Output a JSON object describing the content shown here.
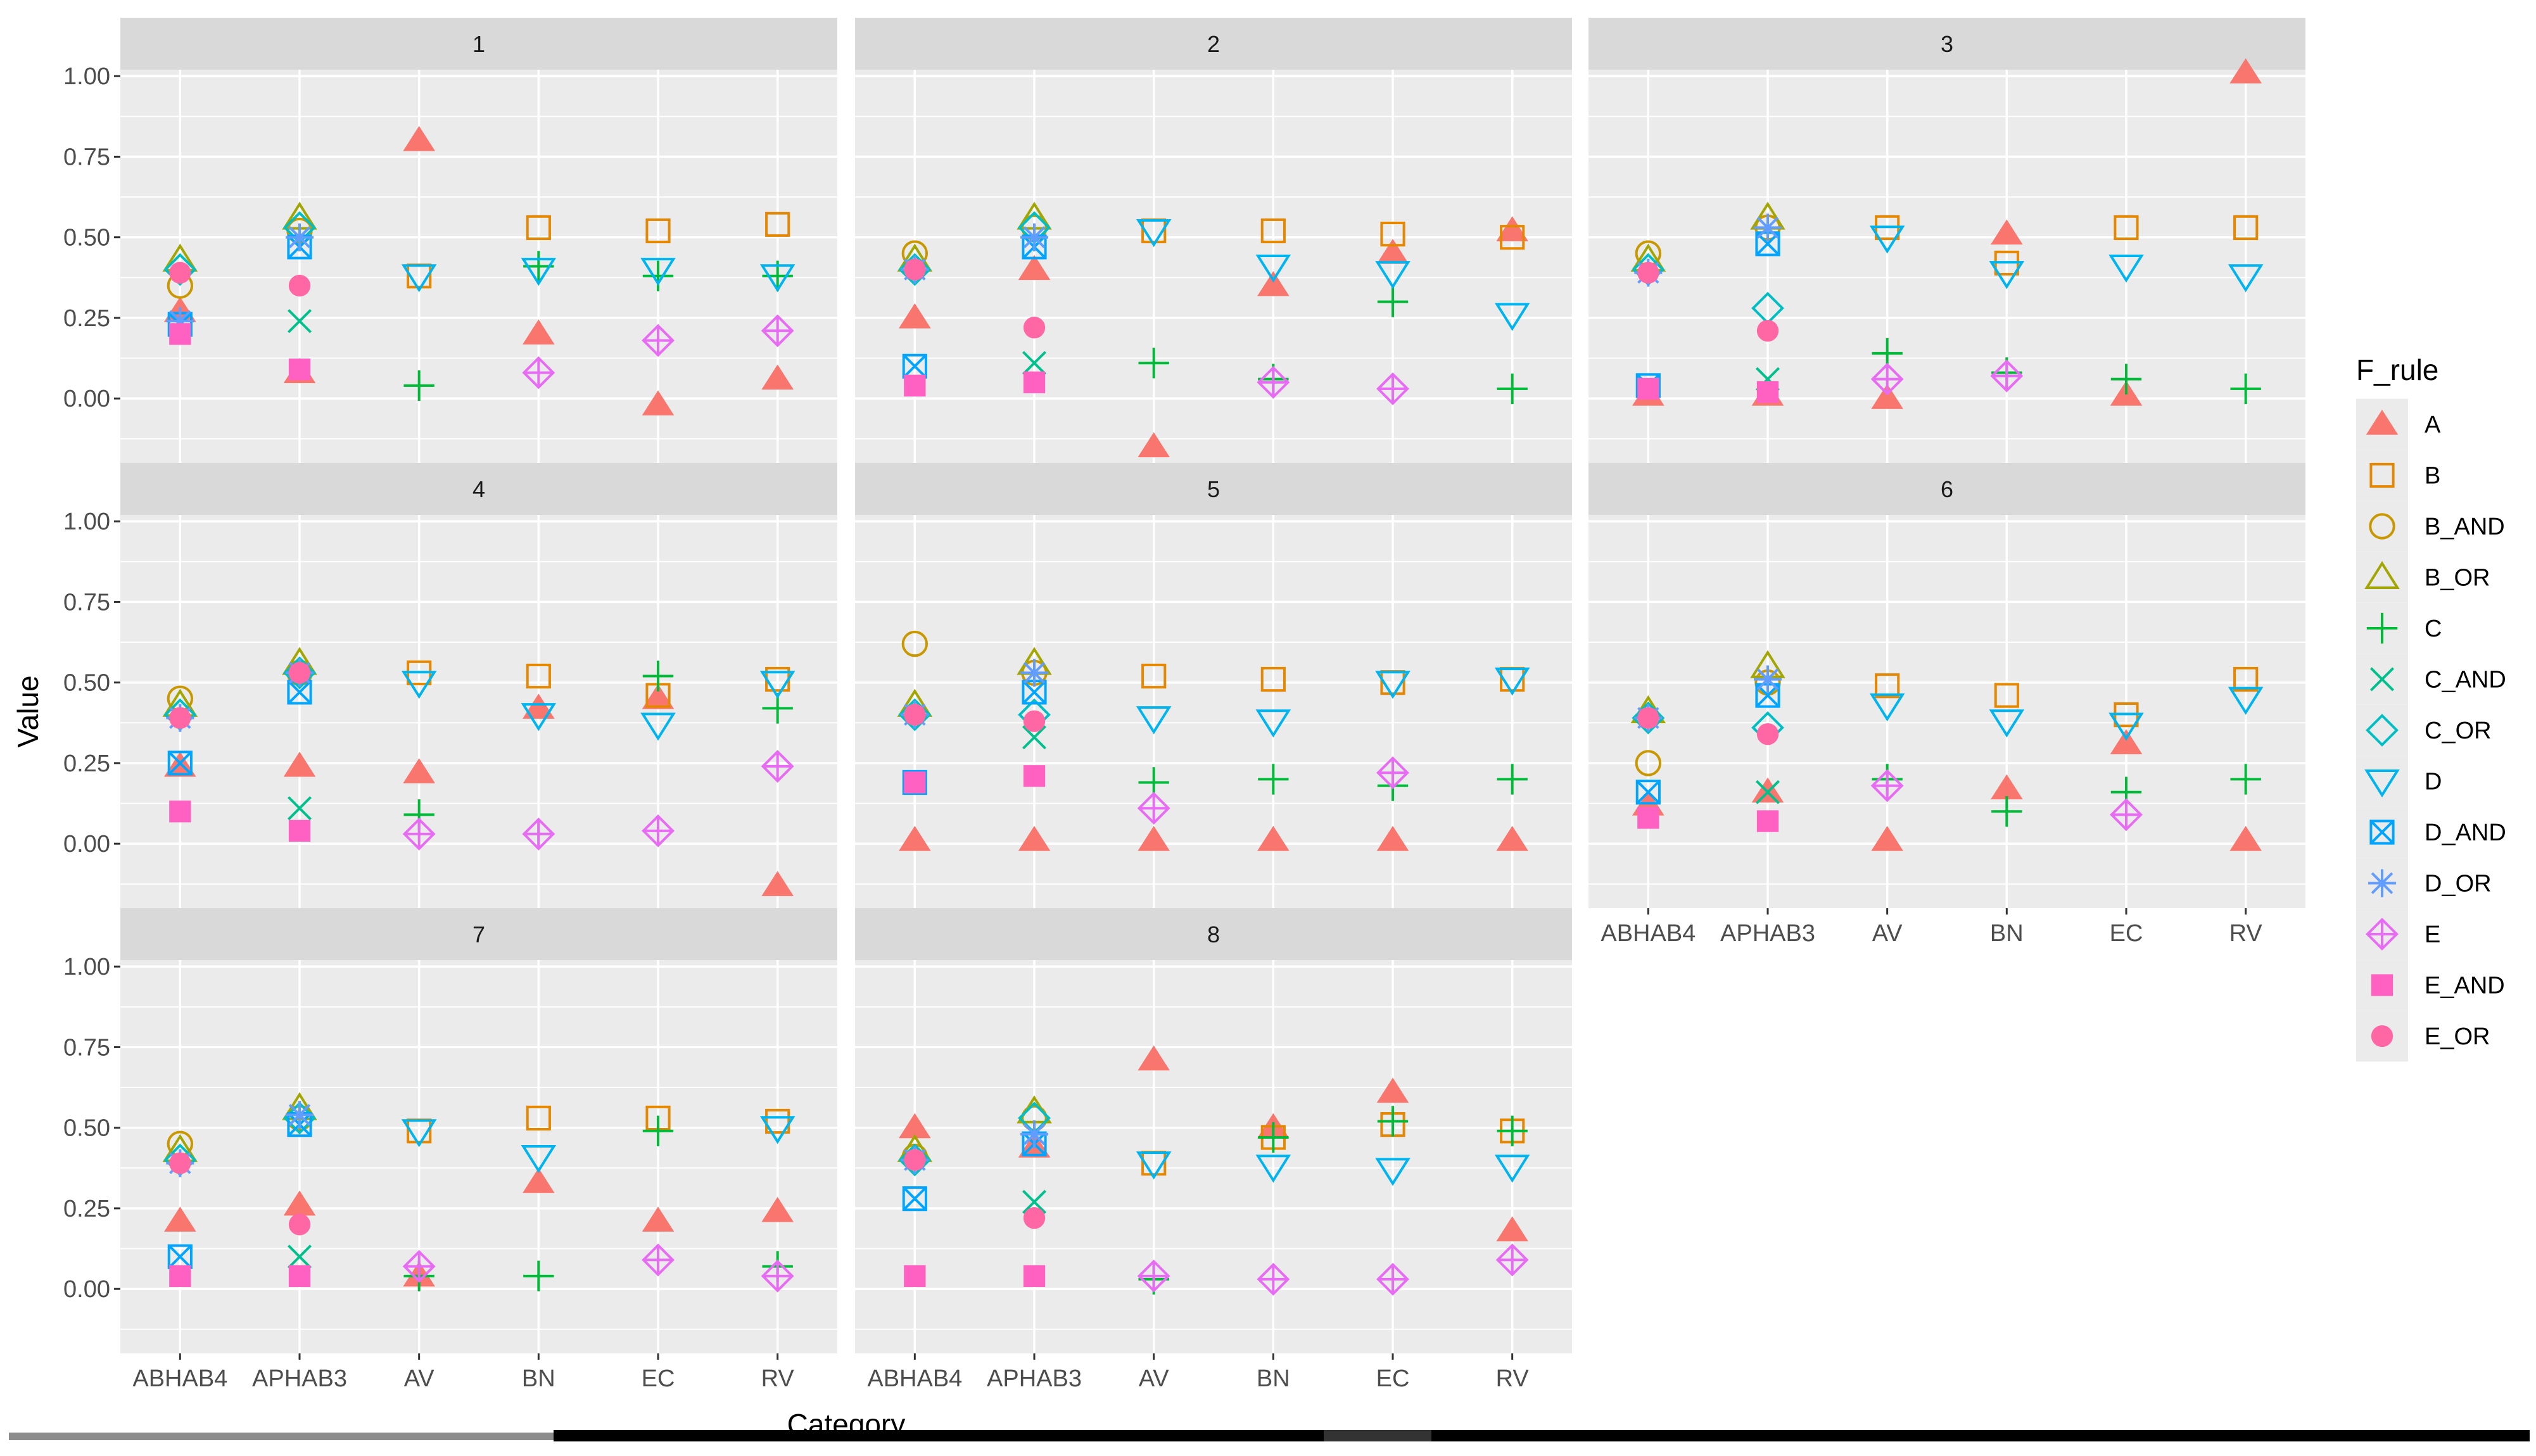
{
  "chart_data": {
    "type": "scatter",
    "title": "",
    "xlabel": "Category",
    "ylabel": "Value",
    "ylim": [
      -0.2,
      1.02
    ],
    "y_ticks": [
      "1.00",
      "0.75",
      "0.50",
      "0.25",
      "0.00"
    ],
    "categories": [
      "ABHAB4",
      "APHAB3",
      "AV",
      "BN",
      "EC",
      "RV"
    ],
    "legend": {
      "title": "F_rule",
      "position": "right"
    },
    "rules": [
      {
        "name": "A",
        "color": "#F8766D",
        "shape": "tri-filled"
      },
      {
        "name": "B",
        "color": "#E58700",
        "shape": "square-open"
      },
      {
        "name": "B_AND",
        "color": "#C99800",
        "shape": "circle-open"
      },
      {
        "name": "B_OR",
        "color": "#A3A500",
        "shape": "tri-open"
      },
      {
        "name": "C",
        "color": "#00BA38",
        "shape": "plus"
      },
      {
        "name": "C_AND",
        "color": "#00C08B",
        "shape": "cross"
      },
      {
        "name": "C_OR",
        "color": "#00BFC4",
        "shape": "diamond-open"
      },
      {
        "name": "D",
        "color": "#00B4EF",
        "shape": "tri-down-open"
      },
      {
        "name": "D_AND",
        "color": "#00A5FF",
        "shape": "square-cross"
      },
      {
        "name": "D_OR",
        "color": "#619CFF",
        "shape": "asterisk"
      },
      {
        "name": "E",
        "color": "#E76BF3",
        "shape": "diamond-plus"
      },
      {
        "name": "E_AND",
        "color": "#FF61C3",
        "shape": "square-filled"
      },
      {
        "name": "E_OR",
        "color": "#FF67A4",
        "shape": "circle-filled"
      }
    ],
    "panels": [
      {
        "label": "1",
        "data": {
          "A": [
            0.27,
            0.08,
            0.8,
            0.2,
            -0.02,
            0.06
          ],
          "B": [
            null,
            null,
            0.38,
            0.53,
            0.52,
            0.54
          ],
          "B_AND": [
            0.35,
            0.52,
            null,
            null,
            null,
            null
          ],
          "B_OR": [
            0.43,
            0.56,
            null,
            null,
            null,
            null
          ],
          "C": [
            null,
            null,
            0.04,
            0.41,
            0.38,
            0.38
          ],
          "C_AND": [
            0.23,
            0.24,
            null,
            null,
            null,
            null
          ],
          "C_OR": [
            0.4,
            0.53,
            null,
            null,
            null,
            null
          ],
          "D": [
            null,
            null,
            0.38,
            0.4,
            0.4,
            0.38
          ],
          "D_AND": [
            0.23,
            0.47,
            null,
            null,
            null,
            null
          ],
          "D_OR": [
            0.24,
            0.5,
            null,
            null,
            null,
            null
          ],
          "E": [
            null,
            null,
            null,
            0.08,
            0.18,
            0.21
          ],
          "E_AND": [
            0.2,
            0.09,
            null,
            null,
            null,
            null
          ],
          "E_OR": [
            0.39,
            0.35,
            null,
            null,
            null,
            null
          ]
        }
      },
      {
        "label": "2",
        "data": {
          "A": [
            0.25,
            0.4,
            -0.15,
            0.35,
            0.45,
            0.52
          ],
          "B": [
            null,
            null,
            0.52,
            0.52,
            0.51,
            0.5
          ],
          "B_AND": [
            0.45,
            0.53,
            null,
            null,
            null,
            null
          ],
          "B_OR": [
            0.43,
            0.56,
            null,
            null,
            null,
            null
          ],
          "C": [
            null,
            null,
            0.11,
            0.06,
            0.3,
            0.03
          ],
          "C_AND": [
            null,
            0.11,
            null,
            null,
            null,
            null
          ],
          "C_OR": [
            0.4,
            0.53,
            null,
            null,
            null,
            null
          ],
          "D": [
            null,
            null,
            0.52,
            0.41,
            0.39,
            0.26
          ],
          "D_AND": [
            0.1,
            0.47,
            null,
            null,
            null,
            null
          ],
          "D_OR": [
            0.4,
            0.5,
            null,
            null,
            null,
            null
          ],
          "E": [
            null,
            null,
            null,
            0.05,
            0.03,
            null
          ],
          "E_AND": [
            0.04,
            0.05,
            null,
            null,
            null,
            null
          ],
          "E_OR": [
            0.4,
            0.22,
            null,
            null,
            null,
            null
          ]
        }
      },
      {
        "label": "3",
        "data": {
          "A": [
            0.01,
            0.01,
            0.0,
            0.51,
            0.01,
            1.01
          ],
          "B": [
            null,
            null,
            0.53,
            0.42,
            0.53,
            0.53
          ],
          "B_AND": [
            0.45,
            0.53,
            null,
            null,
            null,
            null
          ],
          "B_OR": [
            0.43,
            0.56,
            null,
            null,
            null,
            null
          ],
          "C": [
            null,
            null,
            0.14,
            0.08,
            0.06,
            0.03
          ],
          "C_AND": [
            null,
            0.06,
            null,
            null,
            null,
            null
          ],
          "C_OR": [
            0.4,
            0.28,
            null,
            null,
            null,
            null
          ],
          "D": [
            null,
            null,
            0.5,
            0.39,
            0.41,
            0.38
          ],
          "D_AND": [
            0.04,
            0.48,
            null,
            null,
            null,
            null
          ],
          "D_OR": [
            0.39,
            0.53,
            null,
            null,
            null,
            null
          ],
          "E": [
            null,
            null,
            0.06,
            0.07,
            null,
            null
          ],
          "E_AND": [
            0.03,
            0.02,
            null,
            null,
            null,
            null
          ],
          "E_OR": [
            0.39,
            0.21,
            null,
            null,
            null,
            null
          ]
        }
      },
      {
        "label": "4",
        "data": {
          "A": [
            0.24,
            0.24,
            0.22,
            0.42,
            0.45,
            -0.13
          ],
          "B": [
            null,
            null,
            0.53,
            0.52,
            0.46,
            0.51
          ],
          "B_AND": [
            0.45,
            0.53,
            null,
            null,
            null,
            null
          ],
          "B_OR": [
            0.43,
            0.56,
            null,
            null,
            null,
            null
          ],
          "C": [
            null,
            null,
            0.09,
            0.03,
            0.52,
            0.42
          ],
          "C_AND": [
            null,
            0.11,
            null,
            null,
            null,
            null
          ],
          "C_OR": [
            0.4,
            0.53,
            null,
            null,
            null,
            null
          ],
          "D": [
            null,
            null,
            0.5,
            0.4,
            0.37,
            0.5
          ],
          "D_AND": [
            0.25,
            0.47,
            null,
            null,
            null,
            null
          ],
          "D_OR": [
            0.39,
            0.53,
            null,
            null,
            null,
            null
          ],
          "E": [
            null,
            null,
            0.03,
            0.03,
            0.04,
            0.24
          ],
          "E_AND": [
            0.1,
            0.04,
            null,
            null,
            null,
            null
          ],
          "E_OR": [
            0.39,
            0.53,
            null,
            null,
            null,
            null
          ]
        }
      },
      {
        "label": "5",
        "data": {
          "A": [
            0.01,
            0.01,
            0.01,
            0.01,
            0.01,
            0.01
          ],
          "B": [
            null,
            null,
            0.52,
            0.51,
            0.5,
            0.51
          ],
          "B_AND": [
            0.62,
            0.53,
            null,
            null,
            null,
            null
          ],
          "B_OR": [
            0.43,
            0.56,
            null,
            null,
            null,
            null
          ],
          "C": [
            null,
            null,
            0.19,
            0.2,
            0.18,
            0.2
          ],
          "C_AND": [
            null,
            0.33,
            null,
            null,
            null,
            null
          ],
          "C_OR": [
            0.4,
            0.4,
            null,
            null,
            null,
            null
          ],
          "D": [
            null,
            null,
            0.39,
            0.38,
            0.5,
            0.51
          ],
          "D_AND": [
            0.19,
            0.47,
            null,
            null,
            null,
            null
          ],
          "D_OR": [
            0.4,
            0.53,
            null,
            null,
            null,
            null
          ],
          "E": [
            null,
            null,
            0.11,
            null,
            0.22,
            null
          ],
          "E_AND": [
            0.19,
            0.21,
            null,
            null,
            null,
            null
          ],
          "E_OR": [
            0.4,
            0.38,
            null,
            null,
            null,
            null
          ]
        }
      },
      {
        "label": "6",
        "data": {
          "A": [
            0.12,
            0.16,
            0.01,
            0.17,
            0.31,
            0.01
          ],
          "B": [
            null,
            null,
            0.49,
            0.46,
            0.4,
            0.51
          ],
          "B_AND": [
            0.25,
            0.5,
            null,
            null,
            null,
            null
          ],
          "B_OR": [
            0.41,
            0.55,
            null,
            null,
            null,
            null
          ],
          "C": [
            null,
            null,
            0.2,
            0.1,
            0.16,
            0.2
          ],
          "C_AND": [
            null,
            0.16,
            null,
            null,
            null,
            null
          ],
          "C_OR": [
            0.39,
            0.36,
            null,
            null,
            null,
            null
          ],
          "D": [
            null,
            null,
            0.43,
            0.38,
            0.37,
            0.45
          ],
          "D_AND": [
            0.16,
            0.46,
            null,
            null,
            null,
            null
          ],
          "D_OR": [
            0.39,
            0.51,
            null,
            null,
            null,
            null
          ],
          "E": [
            null,
            null,
            0.18,
            null,
            0.09,
            null
          ],
          "E_AND": [
            0.08,
            0.07,
            null,
            null,
            null,
            null
          ],
          "E_OR": [
            0.39,
            0.34,
            null,
            null,
            null,
            null
          ]
        }
      },
      {
        "label": "7",
        "data": {
          "A": [
            0.21,
            0.26,
            0.04,
            0.33,
            0.21,
            0.24
          ],
          "B": [
            null,
            null,
            0.49,
            0.53,
            0.53,
            0.52
          ],
          "B_AND": [
            0.45,
            0.53,
            null,
            null,
            null,
            null
          ],
          "B_OR": [
            0.43,
            0.56,
            null,
            null,
            null,
            null
          ],
          "C": [
            null,
            null,
            0.04,
            0.04,
            0.49,
            0.07
          ],
          "C_AND": [
            null,
            0.1,
            null,
            null,
            null,
            null
          ],
          "C_OR": [
            0.4,
            0.53,
            null,
            null,
            null,
            null
          ],
          "D": [
            null,
            null,
            0.49,
            0.41,
            null,
            0.5
          ],
          "D_AND": [
            0.1,
            0.51,
            null,
            null,
            null,
            null
          ],
          "D_OR": [
            0.39,
            0.54,
            null,
            null,
            null,
            null
          ],
          "E": [
            null,
            null,
            0.07,
            null,
            0.09,
            0.04
          ],
          "E_AND": [
            0.04,
            0.04,
            null,
            null,
            null,
            null
          ],
          "E_OR": [
            0.39,
            0.2,
            null,
            null,
            null,
            null
          ]
        }
      },
      {
        "label": "8",
        "data": {
          "A": [
            0.5,
            0.44,
            0.71,
            0.5,
            0.61,
            0.18
          ],
          "B": [
            null,
            null,
            0.39,
            0.47,
            0.51,
            0.49
          ],
          "B_AND": [
            0.41,
            0.53,
            null,
            null,
            null,
            null
          ],
          "B_OR": [
            0.43,
            0.55,
            null,
            null,
            null,
            null
          ],
          "C": [
            null,
            null,
            0.03,
            0.47,
            0.52,
            0.49
          ],
          "C_AND": [
            null,
            0.27,
            null,
            null,
            null,
            null
          ],
          "C_OR": [
            0.4,
            0.53,
            null,
            null,
            null,
            null
          ],
          "D": [
            null,
            null,
            0.39,
            0.38,
            0.37,
            0.38
          ],
          "D_AND": [
            0.28,
            0.45,
            null,
            null,
            null,
            null
          ],
          "D_OR": [
            0.4,
            0.48,
            null,
            null,
            null,
            null
          ],
          "E": [
            null,
            null,
            0.04,
            0.03,
            0.03,
            0.09
          ],
          "E_AND": [
            0.04,
            0.04,
            null,
            null,
            null,
            null
          ],
          "E_OR": [
            0.4,
            0.22,
            null,
            null,
            null,
            null
          ]
        }
      }
    ]
  }
}
